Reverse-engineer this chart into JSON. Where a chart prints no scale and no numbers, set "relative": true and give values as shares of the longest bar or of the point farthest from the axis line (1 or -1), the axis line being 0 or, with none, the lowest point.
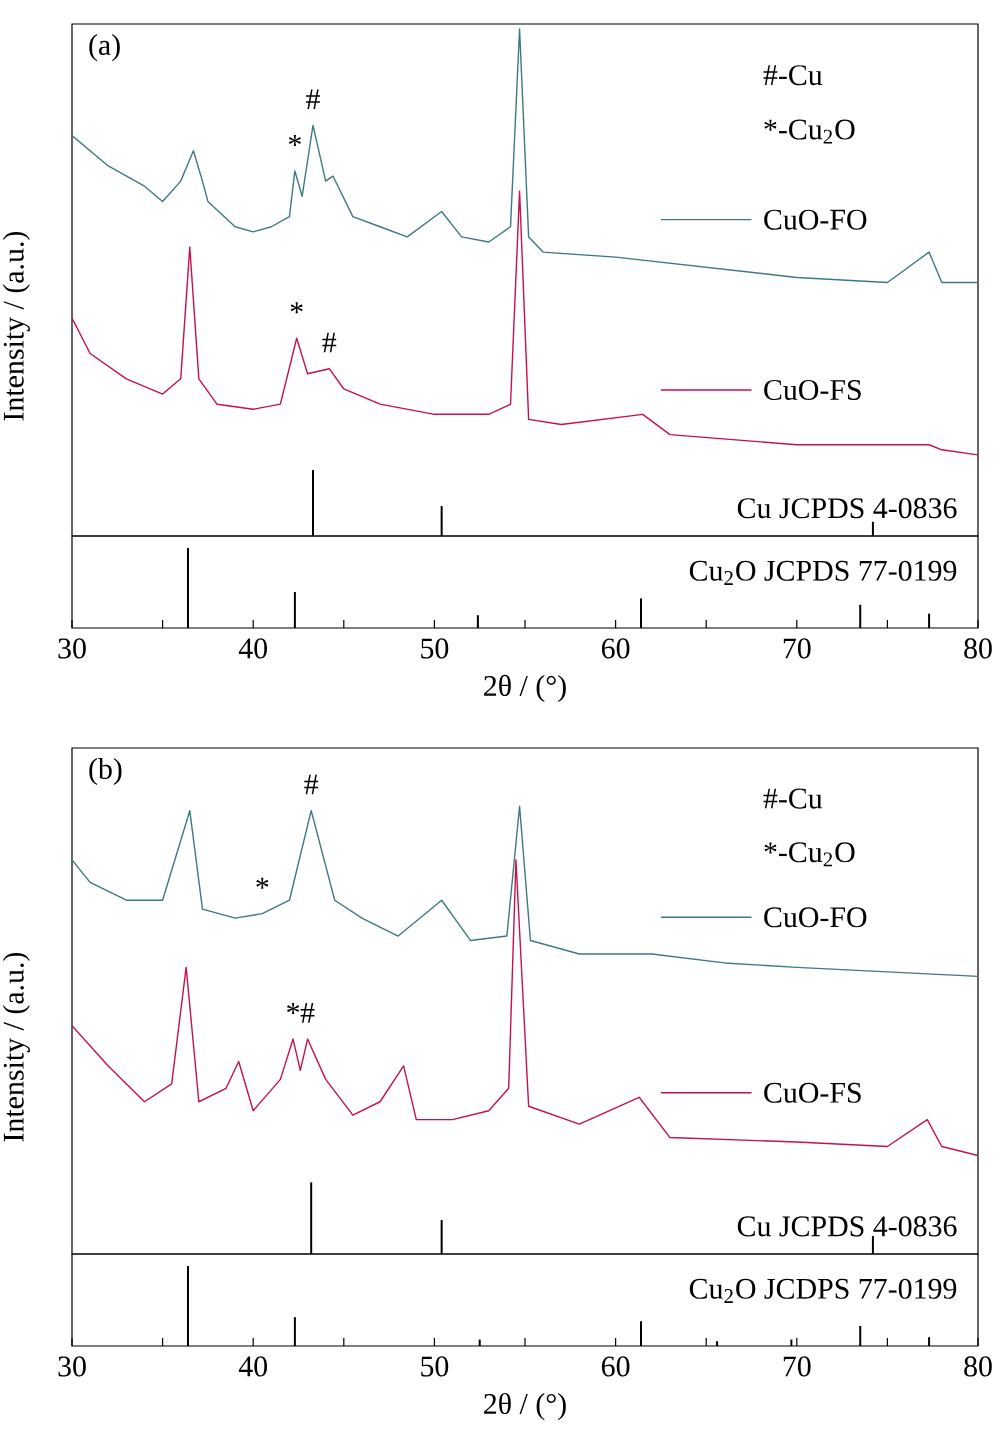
{
  "chart_data": [
    {
      "type": "line",
      "title": "(a)",
      "ylabel": "Intensity / (a.u.)",
      "relative": true,
      "xlim": [
        30,
        80
      ],
      "tick_labels": false,
      "legend": "right",
      "series": [
        {
          "name": "CuO-FO",
          "type": "line",
          "color": "#3d7a80",
          "x": [
            30,
            32,
            34,
            35,
            36,
            36.7,
            37.2,
            37.5,
            39,
            40,
            41,
            42,
            42.3,
            42.7,
            43.3,
            44,
            44.4,
            45.5,
            47,
            48.5,
            50.4,
            51.5,
            53,
            54.2,
            54.7,
            55.2,
            56,
            60,
            65,
            70,
            75,
            77.3,
            78,
            80
          ],
          "values": [
            0.79,
            0.73,
            0.69,
            0.66,
            0.7,
            0.76,
            0.7,
            0.66,
            0.61,
            0.6,
            0.61,
            0.63,
            0.72,
            0.67,
            0.81,
            0.7,
            0.71,
            0.63,
            0.61,
            0.59,
            0.64,
            0.59,
            0.58,
            0.61,
            1.0,
            0.59,
            0.56,
            0.55,
            0.53,
            0.51,
            0.5,
            0.56,
            0.5,
            0.5
          ]
        },
        {
          "name": "CuO-FS",
          "type": "line",
          "color": "#c8104a",
          "x": [
            30,
            31,
            33,
            35,
            36,
            36.5,
            37,
            38,
            40,
            41.5,
            42.4,
            43,
            44.2,
            45,
            47,
            50,
            53,
            54.2,
            54.7,
            55.2,
            57,
            61.5,
            63,
            70,
            77.3,
            78,
            80
          ],
          "values": [
            0.43,
            0.36,
            0.31,
            0.28,
            0.31,
            0.57,
            0.31,
            0.26,
            0.25,
            0.26,
            0.39,
            0.32,
            0.33,
            0.29,
            0.26,
            0.24,
            0.24,
            0.26,
            0.68,
            0.23,
            0.22,
            0.24,
            0.2,
            0.18,
            0.18,
            0.17,
            0.16
          ]
        },
        {
          "name": "Cu JCPDS 4-0836",
          "type": "bar",
          "color": "#000000",
          "x": [
            43.3,
            50.4,
            74.2
          ],
          "values": [
            0.13,
            0.059,
            0.028
          ]
        }
      ],
      "annotations": [
        "#-Cu",
        "*-Cu$_{2}$O",
        {
          "text": "*",
          "x": 42.3,
          "y": 0.72
        },
        {
          "text": "#",
          "x": 43.3,
          "y": 0.81
        },
        {
          "text": "*",
          "x": 42.4,
          "y": 0.39
        },
        {
          "text": "#",
          "x": 44.2,
          "y": 0.33
        }
      ]
    },
    {
      "type": "bar",
      "xlabel": "2θ / (°)",
      "relative": true,
      "xlim": [
        30,
        80
      ],
      "tick_labels": "x",
      "xticks": [
        {
          "value": 30,
          "label": "30"
        },
        {
          "value": 35,
          "label": null
        },
        {
          "value": 40,
          "label": "40"
        },
        {
          "value": 45,
          "label": null
        },
        {
          "value": 50,
          "label": "50"
        },
        {
          "value": 55,
          "label": null
        },
        {
          "value": 60,
          "label": "60"
        },
        {
          "value": 65,
          "label": null
        },
        {
          "value": 70,
          "label": "70"
        },
        {
          "value": 75,
          "label": null
        },
        {
          "value": 80,
          "label": "80"
        }
      ],
      "series": [
        {
          "name": "Cu$_{2}$O JCPDS 77-0199",
          "type": "bar",
          "color": "#000000",
          "x": [
            36.4,
            42.3,
            52.4,
            61.4,
            73.5,
            77.3
          ],
          "values": [
            1,
            0.45,
            0.16,
            0.37,
            0.29,
            0.18
          ]
        }
      ]
    },
    {
      "type": "line",
      "title": "(b)",
      "ylabel": "Intensity / (a.u.)",
      "relative": true,
      "xlim": [
        30,
        80
      ],
      "tick_labels": false,
      "legend": "right",
      "series": [
        {
          "name": "CuO-FO",
          "type": "line",
          "color": "#3d7a80",
          "x": [
            30,
            31,
            33,
            35,
            36.5,
            37.2,
            39,
            40.5,
            42,
            43.2,
            44.5,
            46,
            48,
            50.4,
            52,
            54,
            54.7,
            55.3,
            58,
            62,
            66,
            70,
            75,
            80
          ],
          "values": [
            0.88,
            0.83,
            0.79,
            0.79,
            0.99,
            0.77,
            0.75,
            0.76,
            0.79,
            0.99,
            0.79,
            0.75,
            0.71,
            0.79,
            0.7,
            0.71,
            1.0,
            0.7,
            0.67,
            0.67,
            0.65,
            0.64,
            0.63,
            0.62
          ]
        },
        {
          "name": "CuO-FS",
          "type": "line",
          "color": "#c8104a",
          "x": [
            30,
            32,
            34,
            35.5,
            36.3,
            37,
            38.5,
            39.2,
            40,
            41.5,
            42.2,
            42.6,
            43,
            44,
            45.5,
            47,
            48.3,
            49,
            51,
            53,
            54.1,
            54.5,
            55.2,
            58,
            61.3,
            63,
            70,
            75,
            77.2,
            78,
            80
          ],
          "values": [
            0.51,
            0.42,
            0.34,
            0.38,
            0.64,
            0.34,
            0.37,
            0.43,
            0.32,
            0.39,
            0.48,
            0.41,
            0.48,
            0.39,
            0.31,
            0.34,
            0.42,
            0.3,
            0.3,
            0.32,
            0.37,
            0.88,
            0.33,
            0.29,
            0.35,
            0.26,
            0.25,
            0.24,
            0.3,
            0.24,
            0.22
          ]
        },
        {
          "name": "Cu JCPDS 4-0836",
          "type": "bar",
          "color": "#000000",
          "x": [
            43.2,
            50.4,
            74.2
          ],
          "values": [
            0.16,
            0.076,
            0.04
          ]
        }
      ],
      "annotations": [
        "#-Cu",
        "*-Cu$_{2}$O",
        {
          "text": "*",
          "x": 40.5,
          "y": 0.76
        },
        {
          "text": "#",
          "x": 43.2,
          "y": 0.99
        },
        {
          "text": "*",
          "x": 42.2,
          "y": 0.48
        },
        {
          "text": "#",
          "x": 43,
          "y": 0.48
        }
      ]
    },
    {
      "type": "bar",
      "xlabel": "2θ / (°)",
      "relative": true,
      "xlim": [
        30,
        80
      ],
      "tick_labels": "x",
      "xticks": [
        {
          "value": 30,
          "label": "30"
        },
        {
          "value": 35,
          "label": null
        },
        {
          "value": 40,
          "label": "40"
        },
        {
          "value": 45,
          "label": null
        },
        {
          "value": 50,
          "label": "50"
        },
        {
          "value": 55,
          "label": null
        },
        {
          "value": 60,
          "label": "60"
        },
        {
          "value": 65,
          "label": null
        },
        {
          "value": 70,
          "label": "70"
        },
        {
          "value": 75,
          "label": null
        },
        {
          "value": 80,
          "label": "80"
        }
      ],
      "series": [
        {
          "name": "Cu$_{2}$O JCDPS 77-0199",
          "type": "bar",
          "color": "#000000",
          "x": [
            36.4,
            42.3,
            52.5,
            61.4,
            65.6,
            69.7,
            73.5,
            77.3
          ],
          "values": [
            1,
            0.36,
            0.08,
            0.31,
            0.06,
            0.08,
            0.25,
            0.11
          ]
        }
      ]
    }
  ]
}
